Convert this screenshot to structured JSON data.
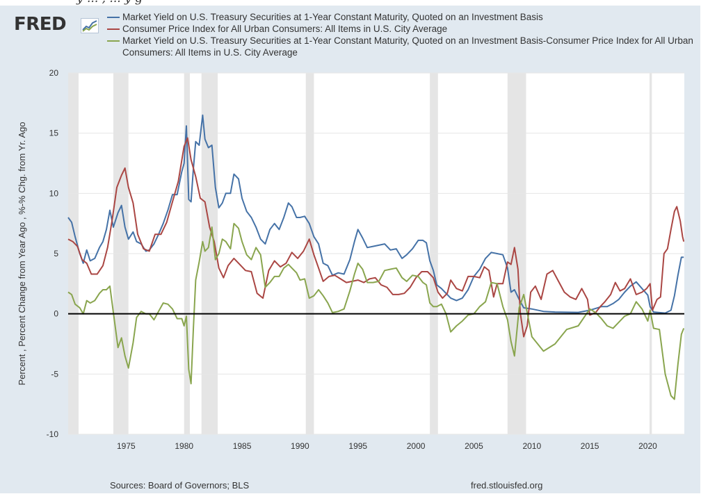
{
  "top_partial_text": "y ... , ... y g",
  "logo": {
    "text": "FRED",
    "icon": "chart-icon"
  },
  "legend": [
    {
      "label": "Market Yield on U.S. Treasury Securities at 1-Year Constant Maturity, Quoted on an Investment Basis",
      "color": "#4572a7"
    },
    {
      "label": "Consumer Price Index for All Urban Consumers: All Items in U.S. City Average",
      "color": "#aa4643"
    },
    {
      "label": "Market Yield on U.S. Treasury Securities at 1-Year Constant Maturity, Quoted on an Investment Basis-Consumer Price Index for All Urban Consumers: All Items in U.S. City Average",
      "color": "#89a54e"
    }
  ],
  "footer": {
    "sources": "Sources: Board of Governors; BLS",
    "site": "fred.stlouisfed.org"
  },
  "chart_data": {
    "type": "line",
    "ylabel": "Percent , Percent Change from Year Ago , %-% Chg. from Yr. Ago",
    "xlabel": "",
    "xlim": [
      1970.0,
      2023.15
    ],
    "ylim": [
      -10,
      20
    ],
    "yticks": [
      -10,
      -5,
      0,
      5,
      10,
      15,
      20
    ],
    "xticks": [
      1975,
      1980,
      1985,
      1990,
      1995,
      2000,
      2005,
      2010,
      2015,
      2020
    ],
    "grid": "horizontal",
    "zero_line": true,
    "recessions": [
      [
        1970.0,
        1970.9
      ],
      [
        1973.9,
        1975.2
      ],
      [
        1980.0,
        1980.5
      ],
      [
        1981.5,
        1982.9
      ],
      [
        1990.5,
        1991.2
      ],
      [
        2001.2,
        2001.9
      ],
      [
        2007.9,
        2009.5
      ],
      [
        2020.15,
        2020.35
      ]
    ],
    "series": [
      {
        "name": "Market Yield on U.S. Treasury Securities at 1-Year Constant Maturity, Quoted on an Investment Basis",
        "color": "#4572a7",
        "x": [
          1970.0,
          1970.3,
          1970.6,
          1971.0,
          1971.3,
          1971.6,
          1971.9,
          1972.3,
          1972.7,
          1973.0,
          1973.3,
          1973.6,
          1973.9,
          1974.3,
          1974.6,
          1974.9,
          1975.2,
          1975.6,
          1975.9,
          1976.3,
          1976.7,
          1977.0,
          1977.4,
          1977.8,
          1978.2,
          1978.6,
          1979.0,
          1979.4,
          1979.8,
          1980.0,
          1980.2,
          1980.4,
          1980.6,
          1980.8,
          1981.0,
          1981.3,
          1981.6,
          1981.8,
          1982.1,
          1982.4,
          1982.7,
          1983.0,
          1983.3,
          1983.6,
          1984.0,
          1984.3,
          1984.7,
          1985.0,
          1985.4,
          1985.8,
          1986.2,
          1986.6,
          1987.0,
          1987.4,
          1987.8,
          1988.2,
          1988.6,
          1989.0,
          1989.3,
          1989.7,
          1990.0,
          1990.4,
          1990.8,
          1991.2,
          1991.6,
          1992.0,
          1992.4,
          1992.8,
          1993.3,
          1993.8,
          1994.3,
          1994.7,
          1995.0,
          1995.4,
          1995.8,
          1996.3,
          1996.8,
          1997.3,
          1997.8,
          1998.3,
          1998.8,
          1999.2,
          1999.7,
          2000.2,
          2000.6,
          2000.9,
          2001.2,
          2001.5,
          2001.8,
          2002.2,
          2002.6,
          2003.0,
          2003.5,
          2004.0,
          2004.5,
          2005.0,
          2005.5,
          2006.0,
          2006.5,
          2007.0,
          2007.5,
          2007.9,
          2008.2,
          2008.5,
          2008.9,
          2009.3,
          2010.0,
          2011.0,
          2012.0,
          2013.0,
          2014.0,
          2015.0,
          2015.5,
          2016.0,
          2016.5,
          2017.0,
          2017.5,
          2018.0,
          2018.5,
          2019.0,
          2019.5,
          2020.0,
          2020.2,
          2020.5,
          2021.0,
          2021.5,
          2022.0,
          2022.3,
          2022.6,
          2022.9,
          2023.1
        ],
        "values": [
          8.0,
          7.6,
          6.4,
          5.0,
          4.2,
          5.3,
          4.4,
          4.6,
          5.5,
          6.0,
          7.0,
          8.6,
          7.2,
          8.4,
          9.0,
          7.2,
          6.2,
          6.8,
          6.0,
          5.8,
          5.2,
          5.3,
          5.8,
          6.6,
          7.5,
          8.6,
          9.9,
          9.9,
          11.8,
          12.5,
          15.6,
          9.5,
          9.3,
          12.0,
          14.3,
          14.0,
          16.5,
          14.5,
          13.8,
          14.0,
          10.5,
          8.8,
          9.2,
          10.0,
          10.0,
          11.6,
          11.2,
          9.6,
          8.5,
          8.0,
          7.2,
          6.2,
          5.8,
          7.0,
          7.5,
          7.0,
          8.0,
          9.2,
          8.9,
          8.0,
          8.0,
          8.1,
          7.5,
          6.4,
          5.8,
          4.2,
          4.0,
          3.2,
          3.4,
          3.3,
          4.5,
          6.0,
          7.0,
          6.3,
          5.5,
          5.6,
          5.7,
          5.8,
          5.3,
          5.4,
          4.6,
          4.9,
          5.4,
          6.1,
          6.1,
          5.9,
          4.4,
          3.6,
          2.4,
          2.1,
          1.7,
          1.3,
          1.1,
          1.3,
          2.0,
          3.1,
          3.7,
          4.6,
          5.1,
          5.0,
          4.9,
          3.8,
          1.8,
          2.0,
          1.2,
          0.5,
          0.4,
          0.2,
          0.15,
          0.13,
          0.12,
          0.3,
          0.45,
          0.6,
          0.6,
          0.85,
          1.2,
          1.8,
          2.3,
          2.65,
          2.1,
          1.55,
          0.6,
          0.15,
          0.1,
          0.06,
          0.3,
          1.5,
          3.2,
          4.7,
          4.7
        ]
      },
      {
        "name": "Consumer Price Index for All Urban Consumers: All Items in U.S. City Average",
        "color": "#aa4643",
        "x": [
          1970.0,
          1970.4,
          1970.8,
          1971.2,
          1971.6,
          1972.0,
          1972.5,
          1973.0,
          1973.4,
          1973.8,
          1974.2,
          1974.6,
          1974.9,
          1975.2,
          1975.6,
          1976.0,
          1976.5,
          1977.0,
          1977.5,
          1978.0,
          1978.5,
          1979.0,
          1979.5,
          1980.0,
          1980.3,
          1980.6,
          1981.0,
          1981.4,
          1981.8,
          1982.2,
          1982.6,
          1983.0,
          1983.4,
          1983.8,
          1984.3,
          1984.8,
          1985.3,
          1985.8,
          1986.3,
          1986.8,
          1987.3,
          1987.8,
          1988.3,
          1988.8,
          1989.3,
          1989.8,
          1990.3,
          1990.8,
          1991.2,
          1991.6,
          1992.0,
          1992.5,
          1993.0,
          1993.5,
          1994.0,
          1994.5,
          1995.0,
          1995.5,
          1996.0,
          1996.5,
          1997.0,
          1997.5,
          1998.0,
          1998.5,
          1999.0,
          1999.5,
          2000.0,
          2000.5,
          2001.0,
          2001.5,
          2001.9,
          2002.3,
          2002.7,
          2003.0,
          2003.5,
          2004.0,
          2004.5,
          2005.0,
          2005.5,
          2005.9,
          2006.3,
          2006.7,
          2007.0,
          2007.5,
          2007.9,
          2008.2,
          2008.5,
          2008.8,
          2009.0,
          2009.3,
          2009.6,
          2009.9,
          2010.3,
          2010.8,
          2011.3,
          2011.8,
          2012.3,
          2012.8,
          2013.3,
          2013.8,
          2014.3,
          2014.8,
          2015.0,
          2015.5,
          2015.9,
          2016.3,
          2016.8,
          2017.2,
          2017.6,
          2018.0,
          2018.5,
          2019.0,
          2019.5,
          2019.9,
          2020.2,
          2020.4,
          2020.8,
          2021.1,
          2021.4,
          2021.7,
          2022.0,
          2022.3,
          2022.5,
          2022.8,
          2023.0,
          2023.1
        ],
        "values": [
          6.2,
          6.0,
          5.6,
          4.5,
          4.2,
          3.3,
          3.3,
          4.0,
          5.5,
          7.8,
          10.5,
          11.5,
          12.1,
          10.5,
          9.2,
          6.6,
          5.4,
          5.2,
          6.6,
          6.6,
          7.6,
          9.3,
          11.0,
          13.9,
          14.6,
          12.8,
          11.4,
          9.6,
          9.3,
          7.2,
          6.0,
          3.8,
          3.0,
          4.0,
          4.6,
          4.1,
          3.6,
          3.5,
          1.7,
          1.3,
          3.6,
          4.4,
          3.9,
          4.2,
          5.1,
          4.6,
          5.2,
          6.2,
          4.9,
          3.8,
          2.7,
          3.1,
          3.2,
          2.9,
          2.6,
          2.7,
          2.8,
          2.6,
          2.9,
          3.0,
          2.4,
          2.2,
          1.6,
          1.6,
          1.7,
          2.2,
          3.0,
          3.5,
          3.5,
          3.0,
          1.8,
          1.3,
          1.7,
          2.8,
          2.1,
          1.9,
          3.1,
          3.1,
          3.0,
          3.9,
          3.6,
          1.4,
          2.5,
          2.5,
          4.3,
          4.1,
          5.5,
          3.7,
          0.1,
          -1.9,
          -1.0,
          1.8,
          2.3,
          1.2,
          3.3,
          3.6,
          2.7,
          1.8,
          1.4,
          1.2,
          2.1,
          1.2,
          -0.1,
          0.1,
          0.6,
          1.0,
          1.6,
          2.6,
          1.9,
          2.1,
          2.9,
          1.6,
          1.8,
          2.1,
          2.5,
          0.3,
          1.2,
          1.4,
          5.0,
          5.4,
          7.0,
          8.5,
          8.9,
          7.7,
          6.4,
          6.0
        ]
      },
      {
        "name": "Market Yield on U.S. Treasury Securities at 1-Year Constant Maturity, Quoted on an Investment Basis-Consumer Price Index for All Urban Consumers: All Items in U.S. City Average",
        "color": "#89a54e",
        "x": [
          1970.0,
          1970.3,
          1970.6,
          1971.0,
          1971.3,
          1971.6,
          1971.9,
          1972.3,
          1972.7,
          1973.0,
          1973.3,
          1973.6,
          1973.9,
          1974.3,
          1974.6,
          1974.9,
          1975.2,
          1975.6,
          1975.9,
          1976.3,
          1976.7,
          1977.0,
          1977.4,
          1977.8,
          1978.2,
          1978.6,
          1979.0,
          1979.4,
          1979.8,
          1980.0,
          1980.2,
          1980.4,
          1980.6,
          1980.8,
          1981.0,
          1981.3,
          1981.6,
          1981.8,
          1982.1,
          1982.4,
          1982.7,
          1983.0,
          1983.3,
          1983.6,
          1984.0,
          1984.3,
          1984.7,
          1985.0,
          1985.4,
          1985.8,
          1986.2,
          1986.6,
          1987.0,
          1987.4,
          1987.8,
          1988.2,
          1988.6,
          1989.0,
          1989.3,
          1989.7,
          1990.0,
          1990.4,
          1990.8,
          1991.2,
          1991.6,
          1992.0,
          1992.4,
          1992.8,
          1993.3,
          1993.8,
          1994.3,
          1994.7,
          1995.0,
          1995.4,
          1995.8,
          1996.3,
          1996.8,
          1997.3,
          1997.8,
          1998.3,
          1998.8,
          1999.2,
          1999.7,
          2000.2,
          2000.6,
          2000.9,
          2001.2,
          2001.5,
          2001.8,
          2002.2,
          2002.6,
          2003.0,
          2003.5,
          2004.0,
          2004.5,
          2005.0,
          2005.5,
          2006.0,
          2006.5,
          2007.0,
          2007.5,
          2007.9,
          2008.2,
          2008.5,
          2008.9,
          2009.3,
          2010.0,
          2011.0,
          2012.0,
          2013.0,
          2014.0,
          2015.0,
          2015.5,
          2016.0,
          2016.5,
          2017.0,
          2017.5,
          2018.0,
          2018.5,
          2019.0,
          2019.5,
          2020.0,
          2020.2,
          2020.5,
          2021.0,
          2021.5,
          2022.0,
          2022.3,
          2022.6,
          2022.9,
          2023.1
        ],
        "values": [
          1.8,
          1.6,
          0.8,
          0.5,
          0.0,
          1.1,
          0.9,
          1.1,
          1.7,
          2.0,
          2.0,
          2.3,
          0.1,
          -2.8,
          -2.0,
          -3.5,
          -4.5,
          -2.4,
          -0.3,
          0.2,
          0.0,
          0.0,
          -0.5,
          0.2,
          0.9,
          0.8,
          0.4,
          -0.4,
          -0.4,
          -1.0,
          -0.2,
          -4.6,
          -5.8,
          -1.3,
          2.8,
          4.3,
          6.0,
          5.2,
          5.5,
          7.2,
          4.5,
          5.0,
          6.2,
          6.0,
          5.4,
          7.5,
          7.1,
          6.0,
          4.9,
          4.5,
          5.5,
          4.9,
          2.2,
          2.6,
          3.1,
          3.1,
          3.8,
          4.1,
          3.8,
          3.4,
          2.8,
          2.9,
          1.3,
          1.5,
          2.0,
          1.5,
          0.9,
          0.1,
          0.2,
          0.4,
          1.9,
          3.3,
          4.2,
          3.7,
          2.6,
          2.6,
          2.7,
          3.6,
          3.7,
          3.8,
          3.0,
          2.7,
          3.2,
          3.1,
          2.6,
          2.4,
          0.9,
          0.6,
          0.6,
          0.8,
          0.0,
          -1.5,
          -1.0,
          -0.6,
          -0.1,
          0.0,
          0.6,
          1.0,
          2.6,
          2.5,
          0.6,
          -0.5,
          -2.3,
          -3.5,
          0.5,
          1.6,
          -1.9,
          -3.1,
          -2.5,
          -1.3,
          -1.0,
          0.4,
          0.1,
          -0.4,
          -1.0,
          -1.2,
          -0.7,
          -0.2,
          0.0,
          1.0,
          0.4,
          -0.6,
          0.3,
          -1.2,
          -1.3,
          -5.0,
          -6.8,
          -7.1,
          -4.2,
          -1.7,
          -1.2
        ]
      }
    ]
  }
}
